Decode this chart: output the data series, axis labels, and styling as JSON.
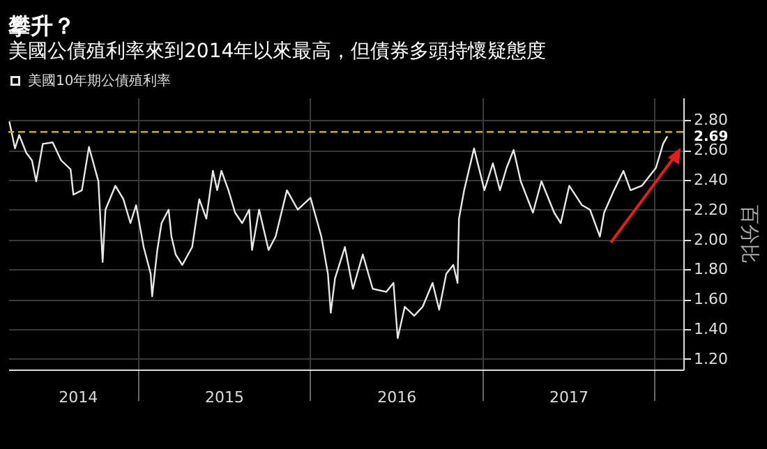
{
  "chart_data": {
    "type": "line",
    "title": "攀升？",
    "subtitle": "美國公債殖利率來到2014年以來最高，但債券多頭持懷疑態度",
    "ylabel": "百分比",
    "x": [
      "2014-04-03",
      "2014-04-15",
      "2014-04-24",
      "2014-05-09",
      "2014-05-21",
      "2014-05-30",
      "2014-06-13",
      "2014-07-04",
      "2014-07-22",
      "2014-08-11",
      "2014-08-17",
      "2014-09-04",
      "2014-09-19",
      "2014-10-09",
      "2014-10-18",
      "2014-10-24",
      "2014-11-14",
      "2014-12-01",
      "2014-12-16",
      "2014-12-28",
      "2015-01-13",
      "2015-01-28",
      "2015-01-31",
      "2015-02-11",
      "2015-02-20",
      "2015-03-07",
      "2015-03-13",
      "2015-03-22",
      "2015-04-05",
      "2015-04-26",
      "2015-05-11",
      "2015-05-26",
      "2015-06-09",
      "2015-06-18",
      "2015-06-27",
      "2015-07-12",
      "2015-07-26",
      "2015-08-10",
      "2015-08-25",
      "2015-08-31",
      "2015-09-15",
      "2015-10-05",
      "2015-10-20",
      "2015-11-13",
      "2015-12-06",
      "2016-01-02",
      "2016-01-25",
      "2016-02-08",
      "2016-02-14",
      "2016-02-23",
      "2016-03-15",
      "2016-04-01",
      "2016-04-22",
      "2016-05-13",
      "2016-06-11",
      "2016-06-26",
      "2016-07-05",
      "2016-07-20",
      "2016-08-09",
      "2016-08-27",
      "2016-09-17",
      "2016-10-01",
      "2016-10-16",
      "2016-10-31",
      "2016-11-09",
      "2016-11-12",
      "2016-11-23",
      "2016-12-14",
      "2017-01-05",
      "2017-01-23",
      "2017-02-07",
      "2017-02-21",
      "2017-03-08",
      "2017-03-23",
      "2017-04-18",
      "2017-05-06",
      "2017-06-02",
      "2017-06-16",
      "2017-07-04",
      "2017-07-31",
      "2017-08-17",
      "2017-09-07",
      "2017-09-16",
      "2017-10-07",
      "2017-10-27",
      "2017-11-11",
      "2017-12-05",
      "2017-12-20",
      "2018-01-04",
      "2018-01-19",
      "2018-01-28"
    ],
    "series": [
      {
        "name": "美國10年期公債殖利率",
        "color": "#e8e8e8",
        "values": [
          2.79,
          2.61,
          2.7,
          2.58,
          2.53,
          2.39,
          2.64,
          2.65,
          2.53,
          2.47,
          2.3,
          2.33,
          2.62,
          2.39,
          1.85,
          2.2,
          2.36,
          2.27,
          2.11,
          2.23,
          1.95,
          1.77,
          1.62,
          1.93,
          2.11,
          2.2,
          2.02,
          1.9,
          1.83,
          1.95,
          2.27,
          2.14,
          2.46,
          2.33,
          2.46,
          2.33,
          2.18,
          2.11,
          2.2,
          1.93,
          2.2,
          1.93,
          2.02,
          2.33,
          2.2,
          2.28,
          2.02,
          1.77,
          1.51,
          1.74,
          1.95,
          1.67,
          1.9,
          1.67,
          1.65,
          1.71,
          1.34,
          1.55,
          1.49,
          1.55,
          1.71,
          1.53,
          1.77,
          1.83,
          1.71,
          2.14,
          2.33,
          2.61,
          2.33,
          2.51,
          2.33,
          2.48,
          2.6,
          2.39,
          2.18,
          2.39,
          2.18,
          2.11,
          2.36,
          2.23,
          2.2,
          2.02,
          2.18,
          2.33,
          2.46,
          2.33,
          2.36,
          2.42,
          2.48,
          2.64,
          2.69
        ]
      }
    ],
    "xlim": [
      "2014-04-01",
      "2018-03-03"
    ],
    "xticks": [
      {
        "value": "2015-01-01",
        "label": null
      },
      {
        "value": "2016-01-01",
        "label": null
      },
      {
        "value": "2017-01-01",
        "label": null
      },
      {
        "value": "2018-01-01",
        "label": null
      },
      {
        "value": "2014-08-26",
        "label": "2014"
      },
      {
        "value": "2015-07-02",
        "label": "2015"
      },
      {
        "value": "2016-07-02",
        "label": "2016"
      },
      {
        "value": "2017-07-02",
        "label": "2017"
      }
    ],
    "ylim": [
      1.13,
      2.95
    ],
    "yticks": [
      {
        "value": 1.2,
        "label": "1.20"
      },
      {
        "value": 1.4,
        "label": "1.40"
      },
      {
        "value": 1.6,
        "label": "1.60"
      },
      {
        "value": 1.8,
        "label": "1.80"
      },
      {
        "value": 2.0,
        "label": "2.00"
      },
      {
        "value": 2.2,
        "label": "2.20"
      },
      {
        "value": 2.4,
        "label": "2.40"
      },
      {
        "value": 2.6,
        "label": "2.60"
      },
      {
        "value": 2.8,
        "label": "2.80"
      }
    ],
    "ref_lines": [
      {
        "axis": "y",
        "value": 2.72,
        "color": "#c8b400",
        "line_style": "dashed"
      }
    ],
    "annotations": [
      {
        "text": "2.69",
        "x": "2018-01-28",
        "y": 2.69
      }
    ],
    "grid": true,
    "legend": "top left",
    "marker": "none",
    "line_style": "solid"
  }
}
